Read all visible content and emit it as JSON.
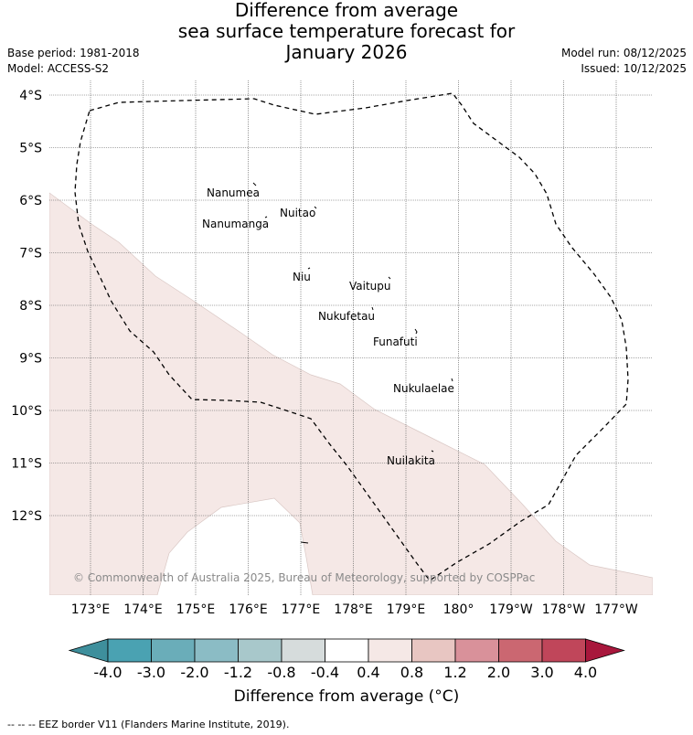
{
  "header": {
    "title_lines": [
      "Difference from average",
      "sea surface temperature forecast for",
      "January 2026"
    ],
    "base_period": "Base period: 1981-2018",
    "model": "Model: ACCESS-S2",
    "model_run": "Model run: 08/12/2025",
    "issued": "Issued: 10/12/2025"
  },
  "map": {
    "lat_labels": [
      "4°S",
      "5°S",
      "6°S",
      "7°S",
      "8°S",
      "9°S",
      "10°S",
      "11°S",
      "12°S"
    ],
    "lon_labels": [
      "173°E",
      "174°E",
      "175°E",
      "176°E",
      "177°E",
      "178°E",
      "179°E",
      "180°",
      "179°W",
      "178°W",
      "177°W"
    ],
    "islands": [
      {
        "name": "Nanumea"
      },
      {
        "name": "Nuitao"
      },
      {
        "name": "Nanumanga"
      },
      {
        "name": "Niu"
      },
      {
        "name": "Vaitupu"
      },
      {
        "name": "Nukufetau"
      },
      {
        "name": "Funafuti"
      },
      {
        "name": "Nukulaelae"
      },
      {
        "name": "Nuilakita"
      }
    ],
    "anomaly_fill_color": "#f5e8e6",
    "copyright": "© Commonwealth of Australia 2025, Bureau of Meteorology, supported by COSPPac"
  },
  "colorbar": {
    "tick_labels": [
      "-4.0",
      "-3.0",
      "-2.0",
      "-1.2",
      "-0.8",
      "-0.4",
      "0.4",
      "0.8",
      "1.2",
      "2.0",
      "3.0",
      "4.0"
    ],
    "colors": [
      "#4aa2b2",
      "#6aadb9",
      "#8bbcc5",
      "#a8c8cb",
      "#d6dcdc",
      "#ffffff",
      "#f5e8e6",
      "#e8c6c2",
      "#d9919a",
      "#cb6771",
      "#c0465a"
    ],
    "low_extend_color": "#3e8f9c",
    "high_extend_color": "#a8173c",
    "label": "Difference from average (°C)"
  },
  "footer": "--  --  -- EEZ border V11 (Flanders Marine Institute, 2019)."
}
